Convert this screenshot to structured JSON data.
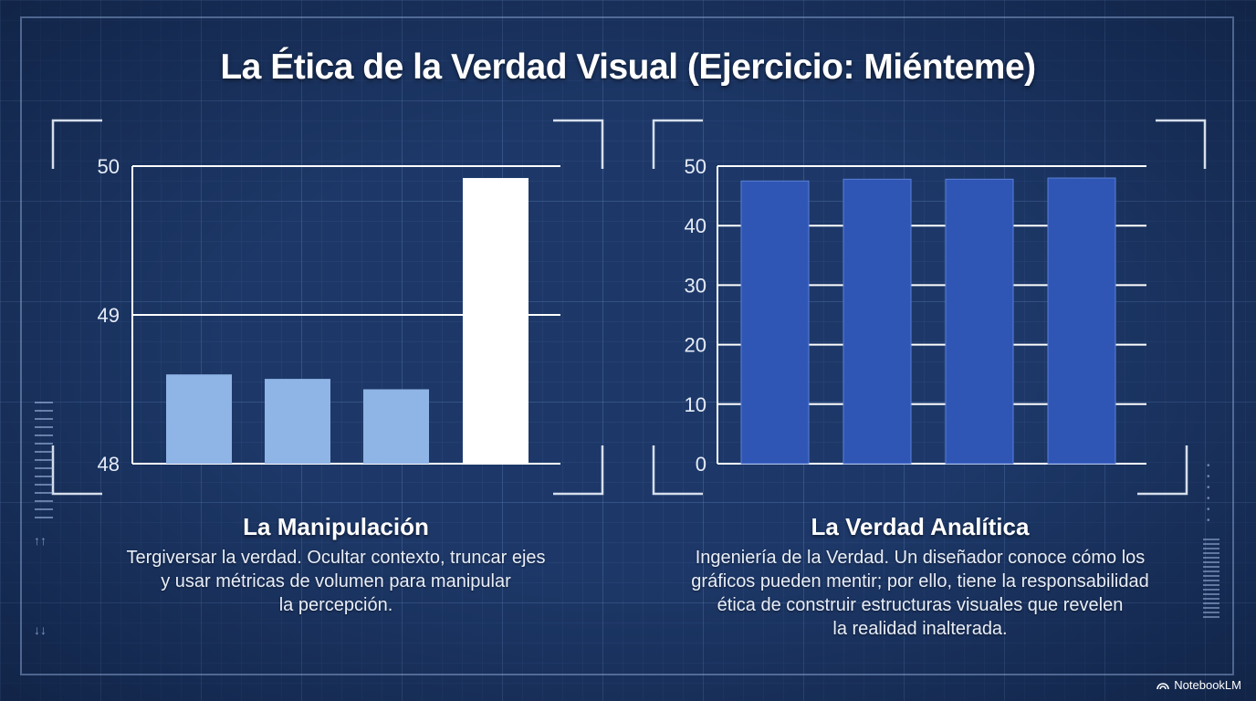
{
  "title": "La Ética de la Verdad Visual (Ejercicio: Miénteme)",
  "panels": [
    {
      "heading": "La Manipulación",
      "text_lines": [
        "Tergiversar la verdad. Ocultar contexto, truncar ejes",
        "y usar métricas de volumen para manipular",
        "la percepción."
      ]
    },
    {
      "heading": "La Verdad Analítica",
      "text_lines": [
        "Ingeniería de la Verdad. Un diseñador conoce cómo los",
        "gráficos pueden mentir; por ello, tiene la responsabilidad",
        "ética de construir estructuras visuales que revelen",
        "la realidad inalterada."
      ]
    }
  ],
  "brand": "NotebookLM",
  "colors": {
    "background": "#1d3868",
    "left_bar": "#8fb4e6",
    "left_bar_highlight": "#ffffff",
    "right_bar": "#2f55b5",
    "axis": "#ffffff"
  },
  "chart_data": [
    {
      "type": "bar",
      "categories": [
        "",
        "",
        "",
        ""
      ],
      "values": [
        48.6,
        48.57,
        48.5,
        49.92
      ],
      "ylim": [
        48,
        50
      ],
      "yticks": [
        48,
        49,
        50
      ],
      "grid": true,
      "title": "",
      "xlabel": "",
      "ylabel": ""
    },
    {
      "type": "bar",
      "categories": [
        "",
        "",
        "",
        ""
      ],
      "values": [
        47.5,
        47.8,
        47.8,
        48.0
      ],
      "ylim": [
        0,
        50
      ],
      "yticks": [
        0,
        10,
        20,
        30,
        40,
        50
      ],
      "grid": true,
      "title": "",
      "xlabel": "",
      "ylabel": ""
    }
  ]
}
